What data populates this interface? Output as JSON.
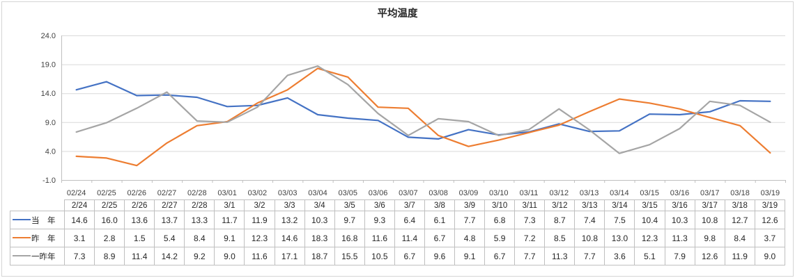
{
  "window": {
    "background": "#ffffff",
    "frame_border_color": "#d4d4d4"
  },
  "chart_data": {
    "type": "line",
    "title": "平均温度",
    "xlabel": "",
    "ylabel": "",
    "ylim": [
      -1.0,
      24.0
    ],
    "y_ticks": [
      24.0,
      19.0,
      14.0,
      9.0,
      4.0,
      -1.0
    ],
    "grid": true,
    "legend_position": "table-left",
    "gridline_color": "#d9d9d9",
    "axis_color": "#bfbfbf",
    "axis_label_color": "#404040",
    "table_border_color": "#bfbfbf",
    "x_labels": [
      "02/24",
      "02/25",
      "02/26",
      "02/27",
      "02/28",
      "03/01",
      "03/02",
      "03/03",
      "03/04",
      "03/05",
      "03/06",
      "03/07",
      "03/08",
      "03/09",
      "03/10",
      "03/11",
      "03/12",
      "03/13",
      "03/14",
      "03/15",
      "03/16",
      "03/17",
      "03/18",
      "03/19"
    ],
    "table_dates": [
      "2/24",
      "2/25",
      "2/26",
      "2/27",
      "2/28",
      "3/1",
      "3/2",
      "3/3",
      "3/4",
      "3/5",
      "3/6",
      "3/7",
      "3/8",
      "3/9",
      "3/10",
      "3/11",
      "3/12",
      "3/13",
      "3/14",
      "3/15",
      "3/16",
      "3/17",
      "3/18",
      "3/19"
    ],
    "series": [
      {
        "name": "当　年",
        "color": "#4472C4",
        "values": [
          14.6,
          16.0,
          13.6,
          13.7,
          13.3,
          11.7,
          11.9,
          13.2,
          10.3,
          9.7,
          9.3,
          6.4,
          6.1,
          7.7,
          6.8,
          7.3,
          8.7,
          7.4,
          7.5,
          10.4,
          10.3,
          10.8,
          12.7,
          12.6
        ]
      },
      {
        "name": "昨　年",
        "color": "#ED7D31",
        "values": [
          3.1,
          2.8,
          1.5,
          5.4,
          8.4,
          9.1,
          12.3,
          14.6,
          18.3,
          16.8,
          11.6,
          11.4,
          6.7,
          4.8,
          5.9,
          7.2,
          8.5,
          10.8,
          13.0,
          12.3,
          11.3,
          9.8,
          8.4,
          3.7
        ]
      },
      {
        "name": "一昨年",
        "color": "#A5A5A5",
        "values": [
          7.3,
          8.9,
          11.4,
          14.2,
          9.2,
          9.0,
          11.6,
          17.1,
          18.7,
          15.5,
          10.5,
          6.7,
          9.6,
          9.1,
          6.7,
          7.7,
          11.3,
          7.7,
          3.6,
          5.1,
          7.9,
          12.6,
          11.9,
          9.0
        ]
      }
    ]
  }
}
